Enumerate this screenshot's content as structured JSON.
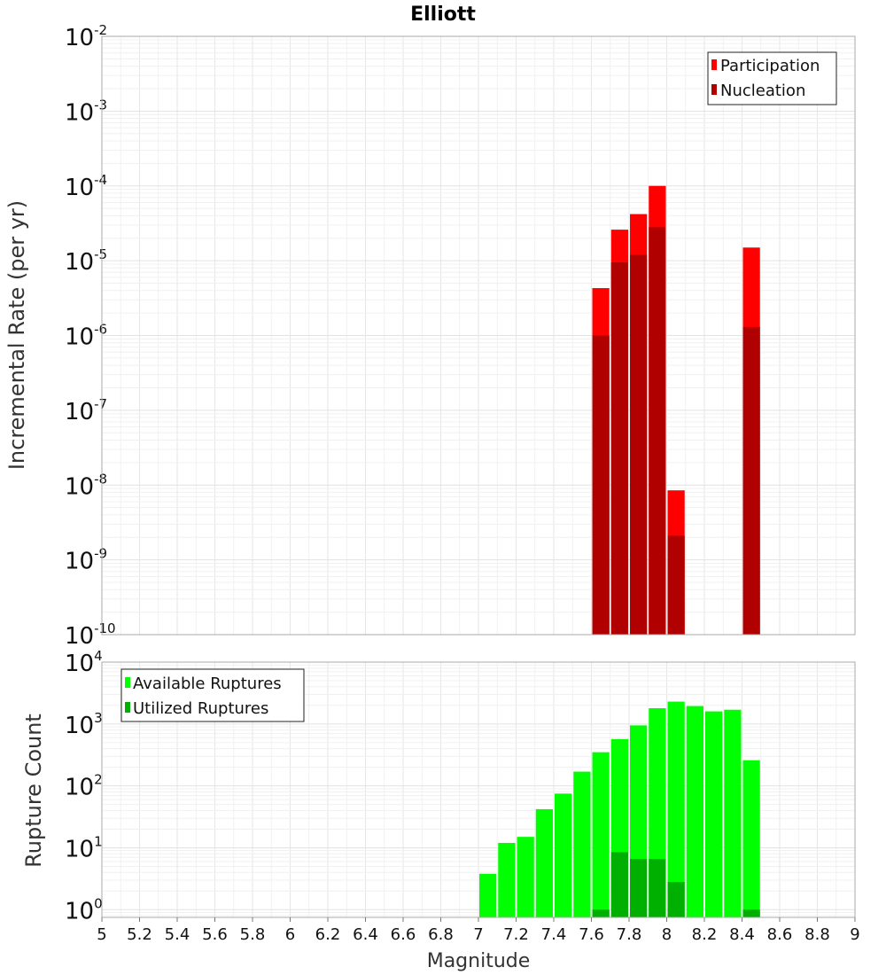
{
  "chart_data": [
    {
      "type": "bar",
      "title": "Elliott",
      "ylabel": "Incremental Rate (per yr)",
      "xlabel": "",
      "yscale": "log",
      "ylim": [
        1e-10,
        0.01
      ],
      "xlim": [
        5,
        9
      ],
      "ytick_exponents": [
        "-10",
        "-9",
        "-8",
        "-7",
        "-6",
        "-5",
        "-4",
        "-3",
        "-2"
      ],
      "legend_position": "top-right",
      "series": [
        {
          "name": "Participation",
          "color": "#ff0000",
          "x": [
            7.65,
            7.75,
            7.85,
            7.95,
            8.05,
            8.45
          ],
          "values": [
            4.3e-06,
            2.6e-05,
            4.2e-05,
            0.0001,
            8.5e-09,
            1.5e-05
          ]
        },
        {
          "name": "Nucleation",
          "color": "#b00000",
          "x": [
            7.65,
            7.75,
            7.85,
            7.95,
            8.05,
            8.45
          ],
          "values": [
            1e-06,
            9.5e-06,
            1.2e-05,
            2.8e-05,
            2.1e-09,
            1.3e-06
          ]
        }
      ]
    },
    {
      "type": "bar",
      "ylabel": "Rupture Count",
      "xlabel": "Magnitude",
      "yscale": "log",
      "ylim": [
        0.75,
        10000
      ],
      "xlim": [
        5,
        9
      ],
      "ytick_exponents": [
        "0",
        "1",
        "2",
        "3",
        "4"
      ],
      "x_ticks": [
        "5",
        "5.2",
        "5.4",
        "5.6",
        "5.8",
        "6",
        "6.2",
        "6.4",
        "6.6",
        "6.8",
        "7",
        "7.2",
        "7.4",
        "7.6",
        "7.8",
        "8",
        "8.2",
        "8.4",
        "8.6",
        "8.8",
        "9"
      ],
      "legend_position": "top-left",
      "series": [
        {
          "name": "Available Ruptures",
          "color": "#00ff00",
          "x": [
            7.05,
            7.15,
            7.25,
            7.35,
            7.45,
            7.55,
            7.65,
            7.75,
            7.85,
            7.95,
            8.05,
            8.15,
            8.25,
            8.35,
            8.45
          ],
          "values": [
            3.8,
            12,
            15,
            42,
            75,
            170,
            350,
            570,
            950,
            1800,
            2300,
            1950,
            1600,
            1700,
            260
          ]
        },
        {
          "name": "Utilized Ruptures",
          "color": "#00b000",
          "x": [
            7.65,
            7.75,
            7.85,
            7.95,
            8.05,
            8.45
          ],
          "values": [
            1,
            8.5,
            6.6,
            6.6,
            2.8,
            1
          ]
        }
      ]
    }
  ]
}
